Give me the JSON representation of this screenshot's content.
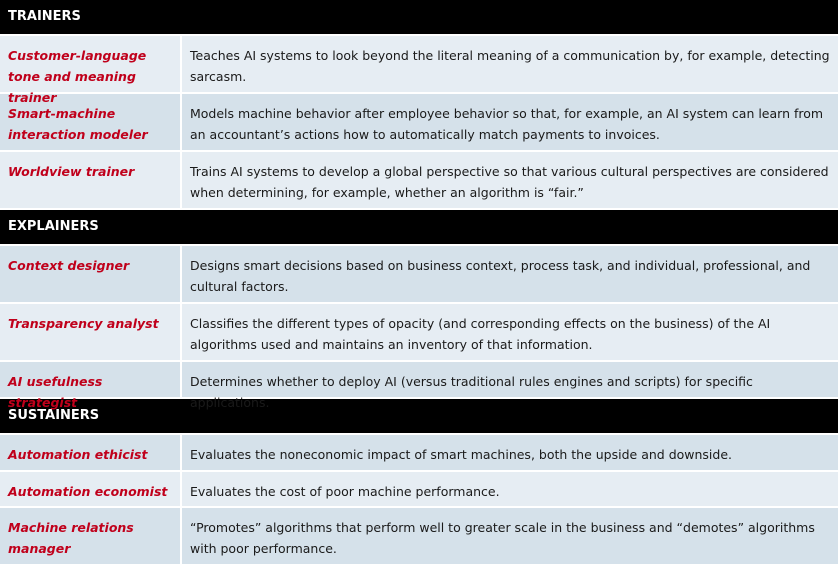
{
  "sections": [
    {
      "title": "TRAINERS",
      "rows": [
        {
          "role": "Customer-language tone and meaning trainer",
          "description": "Teaches AI systems to look beyond the literal meaning of a communication by, for example, detecting sarcasm."
        },
        {
          "role": "Smart-machine interaction modeler",
          "description": "Models machine behavior after employee behavior so that, for example, an AI system can learn from an accountant’s actions how to automatically match payments to invoices."
        },
        {
          "role": "Worldview trainer",
          "description": "Trains AI systems to develop a global perspective so that various cultural perspectives are considered when determining, for example, whether an algorithm is “fair.”"
        }
      ]
    },
    {
      "title": "EXPLAINERS",
      "rows": [
        {
          "role": "Context designer",
          "description": "Designs smart decisions based on business context, process task, and individual, professional, and cultural factors."
        },
        {
          "role": "Transparency analyst",
          "description": "Classifies the different types of opacity (and corresponding effects on the business) of the AI algorithms used and maintains an inventory of that information."
        },
        {
          "role": "AI usefulness strategist",
          "description": "Determines whether to deploy AI (versus traditional rules engines and scripts) for specific applications."
        }
      ]
    },
    {
      "title": "SUSTAINERS",
      "rows": [
        {
          "role": "Automation ethicist",
          "description": "Evaluates the noneconomic impact of smart machines, both the upside and downside."
        },
        {
          "role": "Automation economist",
          "description": "Evaluates the cost of poor machine performance."
        },
        {
          "role": "Machine relations manager",
          "description": "“Promotes” algorithms that perform well to greater scale in the business and “demotes” algorithms with poor performance."
        }
      ]
    }
  ],
  "colors": {
    "header_bg": "#000000",
    "header_text": "#ffffff",
    "role_text": "#c0001b",
    "row_light": "#e6edf3",
    "row_dark": "#d5e1ea"
  }
}
